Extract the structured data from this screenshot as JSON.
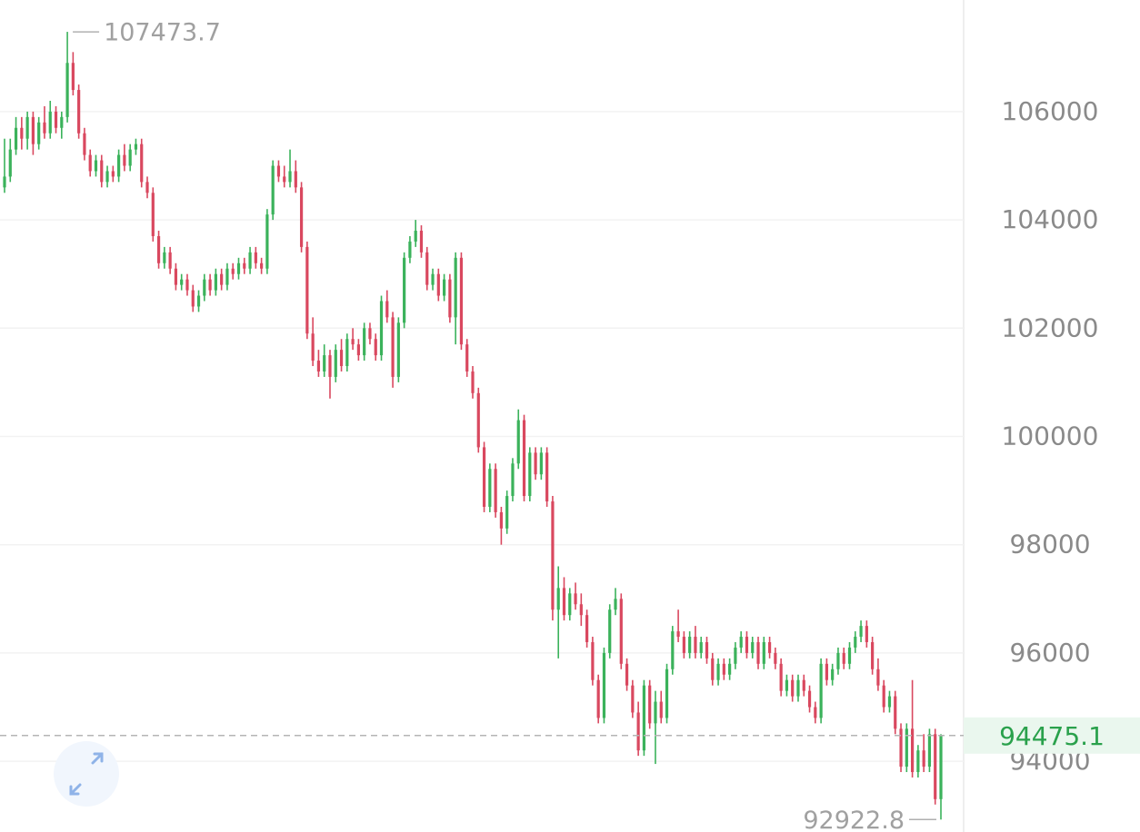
{
  "chart_data": {
    "type": "candlestick",
    "up_color": "#3bb25b",
    "down_color": "#d9485f",
    "ylim": [
      92693,
      108062
    ],
    "yticks": [
      94000,
      96000,
      98000,
      100000,
      102000,
      104000,
      106000
    ],
    "grid": true,
    "ohlc": [
      [
        104600,
        105500,
        104500,
        104800
      ],
      [
        104800,
        105500,
        104700,
        105300
      ],
      [
        105300,
        105900,
        105200,
        105700
      ],
      [
        105700,
        105900,
        105300,
        105500
      ],
      [
        105500,
        106000,
        105300,
        105900
      ],
      [
        105900,
        106000,
        105200,
        105400
      ],
      [
        105400,
        105900,
        105300,
        105800
      ],
      [
        105800,
        106100,
        105500,
        105600
      ],
      [
        105600,
        106200,
        105500,
        106000
      ],
      [
        106000,
        106100,
        105600,
        105700
      ],
      [
        105700,
        106000,
        105500,
        105900
      ],
      [
        105900,
        107473.7,
        105800,
        106900
      ],
      [
        106900,
        107100,
        106300,
        106400
      ],
      [
        106400,
        106500,
        105500,
        105600
      ],
      [
        105600,
        105700,
        105100,
        105200
      ],
      [
        105200,
        105300,
        104800,
        104900
      ],
      [
        104900,
        105200,
        104800,
        105100
      ],
      [
        105100,
        105200,
        104600,
        104700
      ],
      [
        104700,
        105000,
        104600,
        104900
      ],
      [
        104900,
        105000,
        104700,
        104800
      ],
      [
        104800,
        105300,
        104700,
        105200
      ],
      [
        105200,
        105400,
        104900,
        105000
      ],
      [
        105000,
        105400,
        104900,
        105300
      ],
      [
        105300,
        105500,
        105200,
        105400
      ],
      [
        105400,
        105500,
        104600,
        104700
      ],
      [
        104700,
        104800,
        104400,
        104500
      ],
      [
        104500,
        104600,
        103600,
        103700
      ],
      [
        103700,
        103800,
        103100,
        103200
      ],
      [
        103200,
        103500,
        103100,
        103400
      ],
      [
        103400,
        103500,
        103000,
        103100
      ],
      [
        103100,
        103200,
        102700,
        102800
      ],
      [
        102800,
        103000,
        102700,
        102900
      ],
      [
        102900,
        103000,
        102600,
        102700
      ],
      [
        102700,
        102800,
        102300,
        102400
      ],
      [
        102400,
        102700,
        102300,
        102600
      ],
      [
        102600,
        103000,
        102500,
        102900
      ],
      [
        102900,
        103000,
        102600,
        102700
      ],
      [
        102700,
        103100,
        102600,
        103000
      ],
      [
        103000,
        103100,
        102700,
        102800
      ],
      [
        102800,
        103200,
        102700,
        103100
      ],
      [
        103100,
        103200,
        102900,
        103000
      ],
      [
        103000,
        103300,
        102900,
        103200
      ],
      [
        103200,
        103300,
        103000,
        103100
      ],
      [
        103100,
        103500,
        103000,
        103400
      ],
      [
        103400,
        103500,
        103100,
        103200
      ],
      [
        103200,
        103300,
        103000,
        103100
      ],
      [
        103100,
        104200,
        103000,
        104100
      ],
      [
        104100,
        105100,
        104000,
        105000
      ],
      [
        105000,
        105100,
        104700,
        104800
      ],
      [
        104800,
        105000,
        104600,
        104700
      ],
      [
        104700,
        105300,
        104600,
        104900
      ],
      [
        104900,
        105100,
        104500,
        104600
      ],
      [
        104600,
        104700,
        103400,
        103500
      ],
      [
        103500,
        103600,
        101800,
        101900
      ],
      [
        101900,
        102200,
        101300,
        101400
      ],
      [
        101400,
        101600,
        101100,
        101200
      ],
      [
        101200,
        101700,
        101100,
        101500
      ],
      [
        101500,
        101600,
        100700,
        101100
      ],
      [
        101100,
        101700,
        101000,
        101600
      ],
      [
        101600,
        101800,
        101200,
        101300
      ],
      [
        101300,
        101900,
        101200,
        101800
      ],
      [
        101800,
        102000,
        101600,
        101700
      ],
      [
        101700,
        101800,
        101400,
        101500
      ],
      [
        101500,
        102100,
        101400,
        102000
      ],
      [
        102000,
        102100,
        101700,
        101800
      ],
      [
        101800,
        101900,
        101400,
        101500
      ],
      [
        101500,
        102600,
        101400,
        102500
      ],
      [
        102500,
        102700,
        102100,
        102200
      ],
      [
        102200,
        102300,
        100900,
        101100
      ],
      [
        101100,
        102200,
        101000,
        102100
      ],
      [
        102100,
        103400,
        102000,
        103300
      ],
      [
        103300,
        103700,
        103200,
        103600
      ],
      [
        103600,
        104000,
        103500,
        103800
      ],
      [
        103800,
        103900,
        103300,
        103400
      ],
      [
        103400,
        103500,
        102700,
        102800
      ],
      [
        102800,
        103100,
        102700,
        103000
      ],
      [
        103000,
        103100,
        102500,
        102600
      ],
      [
        102600,
        103000,
        102500,
        102900
      ],
      [
        102900,
        103000,
        102100,
        102200
      ],
      [
        102200,
        103400,
        101700,
        103300
      ],
      [
        103300,
        103400,
        101600,
        101700
      ],
      [
        101700,
        101800,
        101100,
        101200
      ],
      [
        101200,
        101300,
        100700,
        100800
      ],
      [
        100800,
        100900,
        99700,
        99800
      ],
      [
        99800,
        99900,
        98600,
        98700
      ],
      [
        98700,
        99500,
        98600,
        99400
      ],
      [
        99400,
        99500,
        98500,
        98600
      ],
      [
        98600,
        98700,
        98000,
        98300
      ],
      [
        98300,
        99000,
        98200,
        98900
      ],
      [
        98900,
        99600,
        98800,
        99500
      ],
      [
        99500,
        100500,
        99400,
        100300
      ],
      [
        100300,
        100400,
        98800,
        98900
      ],
      [
        98900,
        99800,
        98800,
        99700
      ],
      [
        99700,
        99800,
        99200,
        99300
      ],
      [
        99300,
        99800,
        99200,
        99700
      ],
      [
        99700,
        99800,
        98700,
        98800
      ],
      [
        98800,
        98900,
        96600,
        96800
      ],
      [
        96800,
        97600,
        95900,
        97200
      ],
      [
        97200,
        97400,
        96600,
        96700
      ],
      [
        96700,
        97200,
        96600,
        97100
      ],
      [
        97100,
        97300,
        96800,
        96900
      ],
      [
        96900,
        97100,
        96500,
        96700
      ],
      [
        96700,
        96800,
        96100,
        96200
      ],
      [
        96200,
        96300,
        95400,
        95500
      ],
      [
        95500,
        95600,
        94700,
        94800
      ],
      [
        94800,
        96100,
        94700,
        96000
      ],
      [
        96000,
        96900,
        95900,
        96800
      ],
      [
        96800,
        97200,
        96700,
        97000
      ],
      [
        97000,
        97100,
        95700,
        95800
      ],
      [
        95800,
        95900,
        95300,
        95400
      ],
      [
        95400,
        95500,
        94800,
        94900
      ],
      [
        94900,
        95100,
        94100,
        94200
      ],
      [
        94200,
        95500,
        94100,
        95400
      ],
      [
        95400,
        95500,
        94600,
        94700
      ],
      [
        94700,
        95300,
        93950,
        95100
      ],
      [
        95100,
        95300,
        94700,
        94800
      ],
      [
        94800,
        95800,
        94700,
        95700
      ],
      [
        95700,
        96500,
        95600,
        96400
      ],
      [
        96400,
        96800,
        96200,
        96300
      ],
      [
        96300,
        96400,
        95900,
        96000
      ],
      [
        96000,
        96400,
        95900,
        96300
      ],
      [
        96300,
        96500,
        95900,
        96000
      ],
      [
        96000,
        96300,
        95900,
        96200
      ],
      [
        96200,
        96300,
        95800,
        95900
      ],
      [
        95900,
        96000,
        95400,
        95500
      ],
      [
        95500,
        95900,
        95400,
        95800
      ],
      [
        95800,
        95900,
        95500,
        95600
      ],
      [
        95600,
        95900,
        95500,
        95800
      ],
      [
        95800,
        96200,
        95700,
        96100
      ],
      [
        96100,
        96400,
        96000,
        96300
      ],
      [
        96300,
        96400,
        95900,
        96000
      ],
      [
        96000,
        96300,
        95900,
        96200
      ],
      [
        96200,
        96300,
        95700,
        95800
      ],
      [
        95800,
        96300,
        95700,
        96200
      ],
      [
        96200,
        96300,
        95900,
        96000
      ],
      [
        96000,
        96100,
        95700,
        95800
      ],
      [
        95800,
        95900,
        95200,
        95300
      ],
      [
        95300,
        95600,
        95200,
        95500
      ],
      [
        95500,
        95600,
        95100,
        95200
      ],
      [
        95200,
        95600,
        95100,
        95500
      ],
      [
        95500,
        95600,
        95200,
        95300
      ],
      [
        95300,
        95400,
        94900,
        95000
      ],
      [
        95000,
        95100,
        94700,
        94800
      ],
      [
        94800,
        95900,
        94700,
        95800
      ],
      [
        95800,
        95900,
        95400,
        95500
      ],
      [
        95500,
        95800,
        95400,
        95700
      ],
      [
        95700,
        96100,
        95600,
        96000
      ],
      [
        96000,
        96100,
        95700,
        95800
      ],
      [
        95800,
        96200,
        95700,
        96100
      ],
      [
        96100,
        96400,
        96000,
        96300
      ],
      [
        96300,
        96600,
        96200,
        96500
      ],
      [
        96500,
        96600,
        96100,
        96200
      ],
      [
        96200,
        96300,
        95600,
        95700
      ],
      [
        95700,
        95900,
        95300,
        95400
      ],
      [
        95400,
        95500,
        94900,
        95000
      ],
      [
        95000,
        95300,
        94900,
        95200
      ],
      [
        95200,
        95300,
        94500,
        94600
      ],
      [
        94600,
        94700,
        93800,
        93900
      ],
      [
        93900,
        94700,
        93800,
        94600
      ],
      [
        94600,
        95500,
        93700,
        93800
      ],
      [
        93800,
        94300,
        93700,
        94200
      ],
      [
        94200,
        94500,
        93800,
        93900
      ],
      [
        93900,
        94600,
        93800,
        94500
      ],
      [
        94500,
        94600,
        93200,
        93300
      ],
      [
        93300,
        94500,
        92922.8,
        94475.1
      ]
    ],
    "max_bar": 11,
    "min_bar": 164
  }
}
